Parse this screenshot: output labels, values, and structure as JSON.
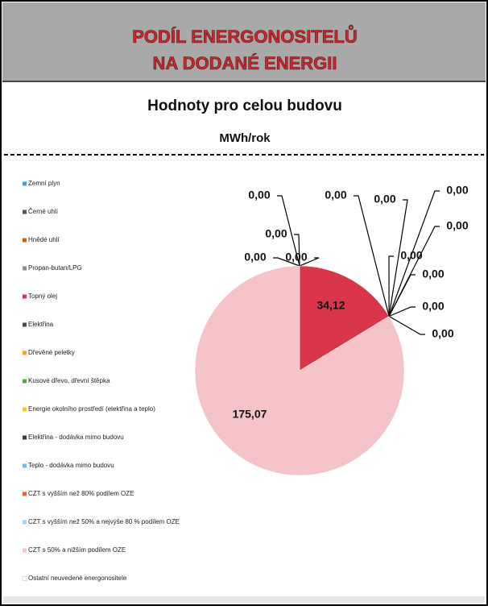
{
  "chart_data": {
    "type": "pie",
    "header": [
      "PODÍL ENERGONOSITELŮ",
      "NA DODANÉ ENERGII"
    ],
    "title": "Hodnoty pro celou budovu",
    "subtitle": "MWh/rok",
    "categories": [
      "Zemní plyn",
      "Černé uhlí",
      "Hnědé uhlí",
      "Propan-butan/LPG",
      "Topný olej",
      "Elektřina",
      "Dřevěné peletky",
      "Kusové dřevo, dřevní štěpka",
      "Energie okolního prostředí (elektřina a teplo)",
      "Elektřina - dodávka mimo budovu",
      "Teplo - dodávka mimo budovu",
      "CZT s vyšším než 80% podílem OZE",
      "CZT s vyšším než 50% a nejvýše 80 % podílem OZE",
      "CZT s 50% a nižším podílem OZE",
      "Ostatní neuvedené energonositele"
    ],
    "values": [
      0,
      0,
      0,
      0,
      34.12,
      0,
      0,
      0,
      0,
      0,
      0,
      0,
      0,
      175.07,
      0
    ],
    "value_labels": [
      "0,00",
      "0,00",
      "0,00",
      "0,00",
      "34,12",
      "0,00",
      "0,00",
      "0,00",
      "0,00",
      "0,00",
      "0,00",
      "0,00",
      "0,00",
      "175,07",
      null
    ],
    "colors": [
      "#4f9fd6",
      "#555555",
      "#c8641e",
      "#8a8a8a",
      "#d9364a",
      "#4a4a4a",
      "#f0a040",
      "#5aa84a",
      "#f0d020",
      "#3a3a3a",
      "#7ab8e0",
      "#e8643c",
      "#a8d0f0",
      "#f4c4c8",
      "#ffffff"
    ],
    "legend": "left"
  }
}
